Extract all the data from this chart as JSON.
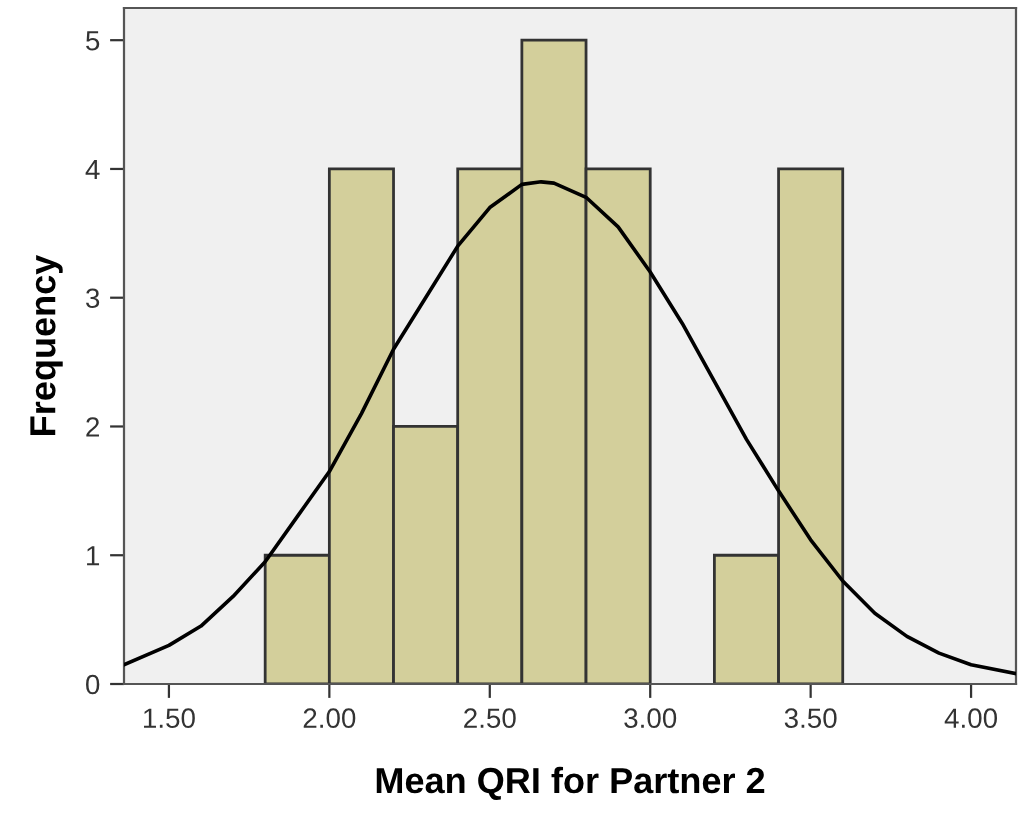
{
  "chart_data": {
    "type": "histogram",
    "xlabel": "Mean QRI for Partner 2",
    "ylabel": "Frequency",
    "bins": [
      1.8,
      2.0,
      2.2,
      2.4,
      2.6,
      2.8,
      3.0,
      3.2,
      3.4,
      3.6
    ],
    "values": [
      1,
      4,
      2,
      4,
      5,
      4,
      0,
      1,
      4
    ],
    "color": "#d3cf9b",
    "series": [
      {
        "type": "line",
        "color": "#000000",
        "x": [
          1.36,
          1.5,
          1.6,
          1.7,
          1.8,
          1.9,
          2.0,
          2.1,
          2.2,
          2.3,
          2.4,
          2.5,
          2.6,
          2.66,
          2.7,
          2.8,
          2.9,
          3.0,
          3.1,
          3.2,
          3.3,
          3.4,
          3.5,
          3.6,
          3.7,
          3.8,
          3.9,
          4.0,
          4.14
        ],
        "values": [
          0.15,
          0.3,
          0.45,
          0.68,
          0.95,
          1.3,
          1.65,
          2.1,
          2.6,
          3.0,
          3.4,
          3.7,
          3.88,
          3.9,
          3.89,
          3.78,
          3.55,
          3.2,
          2.8,
          2.35,
          1.9,
          1.5,
          1.12,
          0.8,
          0.55,
          0.37,
          0.24,
          0.15,
          0.08
        ]
      }
    ],
    "xlim": [
      1.36,
      4.14
    ],
    "ylim": [
      0,
      5.25
    ],
    "xticks": [
      {
        "value": 1.5,
        "label": "1.50"
      },
      {
        "value": 2.0,
        "label": "2.00"
      },
      {
        "value": 2.5,
        "label": "2.50"
      },
      {
        "value": 3.0,
        "label": "3.00"
      },
      {
        "value": 3.5,
        "label": "3.50"
      },
      {
        "value": 4.0,
        "label": "4.00"
      }
    ],
    "yticks": [
      0,
      1,
      2,
      3,
      4,
      5
    ],
    "grid": false
  }
}
